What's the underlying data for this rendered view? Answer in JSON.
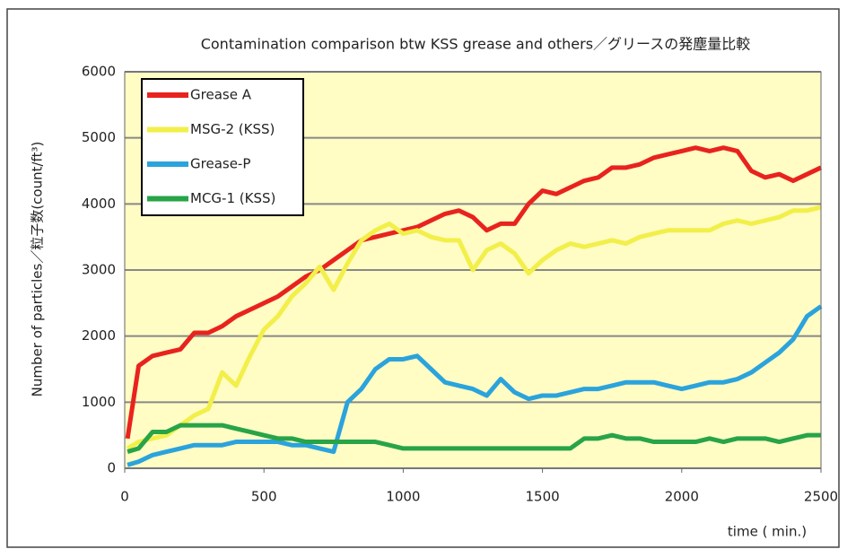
{
  "chart_data": {
    "type": "line",
    "title": "Contamination comparison btw KSS grease and others／グリースの発塵量比較",
    "xlabel": "time ( min.)",
    "ylabel": "Number of particles／粒子数(count/ft³)",
    "x": [
      10,
      50,
      100,
      150,
      200,
      250,
      300,
      350,
      400,
      450,
      500,
      550,
      600,
      650,
      700,
      750,
      800,
      850,
      900,
      950,
      1000,
      1050,
      1100,
      1150,
      1200,
      1250,
      1300,
      1350,
      1400,
      1450,
      1500,
      1550,
      1600,
      1650,
      1700,
      1750,
      1800,
      1850,
      1900,
      1950,
      2000,
      2050,
      2100,
      2150,
      2200,
      2250,
      2300,
      2350,
      2400,
      2450,
      2500
    ],
    "series": [
      {
        "name": "Grease A",
        "color": "#e8231e",
        "values": [
          450,
          1550,
          1700,
          1750,
          1800,
          2050,
          2050,
          2150,
          2300,
          2400,
          2500,
          2600,
          2750,
          2900,
          3000,
          3150,
          3300,
          3450,
          3500,
          3550,
          3600,
          3650,
          3750,
          3850,
          3900,
          3800,
          3600,
          3700,
          3700,
          4000,
          4200,
          4150,
          4250,
          4350,
          4400,
          4550,
          4550,
          4600,
          4700,
          4750,
          4800,
          4850,
          4800,
          4850,
          4800,
          4500,
          4400,
          4450,
          4350,
          4450,
          4550
        ]
      },
      {
        "name": "MSG-2 (KSS)",
        "color": "#f2ef4a",
        "values": [
          300,
          400,
          450,
          500,
          650,
          800,
          900,
          1450,
          1250,
          1700,
          2100,
          2300,
          2600,
          2800,
          3050,
          2700,
          3100,
          3450,
          3600,
          3700,
          3550,
          3600,
          3500,
          3450,
          3450,
          3000,
          3300,
          3400,
          3250,
          2950,
          3150,
          3300,
          3400,
          3350,
          3400,
          3450,
          3400,
          3500,
          3550,
          3600,
          3600,
          3600,
          3600,
          3700,
          3750,
          3700,
          3750,
          3800,
          3900,
          3900,
          3950
        ]
      },
      {
        "name": "Grease-P",
        "color": "#2ba3dc",
        "values": [
          50,
          100,
          200,
          250,
          300,
          350,
          350,
          350,
          400,
          400,
          400,
          400,
          350,
          350,
          300,
          250,
          1000,
          1200,
          1500,
          1650,
          1650,
          1700,
          1500,
          1300,
          1250,
          1200,
          1100,
          1350,
          1150,
          1050,
          1100,
          1100,
          1150,
          1200,
          1200,
          1250,
          1300,
          1300,
          1300,
          1250,
          1200,
          1250,
          1300,
          1300,
          1350,
          1450,
          1600,
          1750,
          1950,
          2300,
          2450
        ]
      },
      {
        "name": "MCG-1 (KSS)",
        "color": "#28a448",
        "values": [
          250,
          300,
          550,
          550,
          650,
          650,
          650,
          650,
          600,
          550,
          500,
          450,
          450,
          400,
          400,
          400,
          400,
          400,
          400,
          350,
          300,
          300,
          300,
          300,
          300,
          300,
          300,
          300,
          300,
          300,
          300,
          300,
          300,
          450,
          450,
          500,
          450,
          450,
          400,
          400,
          400,
          400,
          450,
          400,
          450,
          450,
          450,
          400,
          450,
          500,
          500
        ]
      }
    ],
    "xlim": [
      0,
      2500
    ],
    "xticks": [
      0,
      500,
      1000,
      1500,
      2000,
      2500
    ],
    "ylim": [
      0,
      6000
    ],
    "yticks": [
      0,
      1000,
      2000,
      3000,
      4000,
      5000,
      6000
    ],
    "grid": true,
    "legend": "upper left",
    "background": "#fffcc4"
  }
}
